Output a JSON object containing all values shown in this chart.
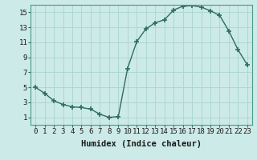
{
  "x": [
    0,
    1,
    2,
    3,
    4,
    5,
    6,
    7,
    8,
    9,
    10,
    11,
    12,
    13,
    14,
    15,
    16,
    17,
    18,
    19,
    20,
    21,
    22,
    23
  ],
  "y": [
    5.0,
    4.2,
    3.2,
    2.7,
    2.4,
    2.3,
    2.1,
    1.4,
    1.0,
    1.1,
    7.5,
    11.1,
    12.8,
    13.6,
    14.0,
    15.3,
    15.8,
    15.9,
    15.7,
    15.2,
    14.6,
    12.5,
    10.0,
    8.0
  ],
  "line_color": "#2d6e5e",
  "marker": "+",
  "marker_size": 4,
  "marker_ew": 1.2,
  "bg_color": "#cceae7",
  "grid_color": "#aad4d0",
  "xlabel": "Humidex (Indice chaleur)",
  "xlim": [
    -0.5,
    23.5
  ],
  "ylim": [
    0,
    16
  ],
  "xticks": [
    0,
    1,
    2,
    3,
    4,
    5,
    6,
    7,
    8,
    9,
    10,
    11,
    12,
    13,
    14,
    15,
    16,
    17,
    18,
    19,
    20,
    21,
    22,
    23
  ],
  "yticks": [
    1,
    3,
    5,
    7,
    9,
    11,
    13,
    15
  ],
  "xlabel_fontsize": 7.5,
  "tick_fontsize": 6.5,
  "line_width": 1.0,
  "spine_color": "#4a9a8a",
  "tick_color": "#2d6e5e"
}
